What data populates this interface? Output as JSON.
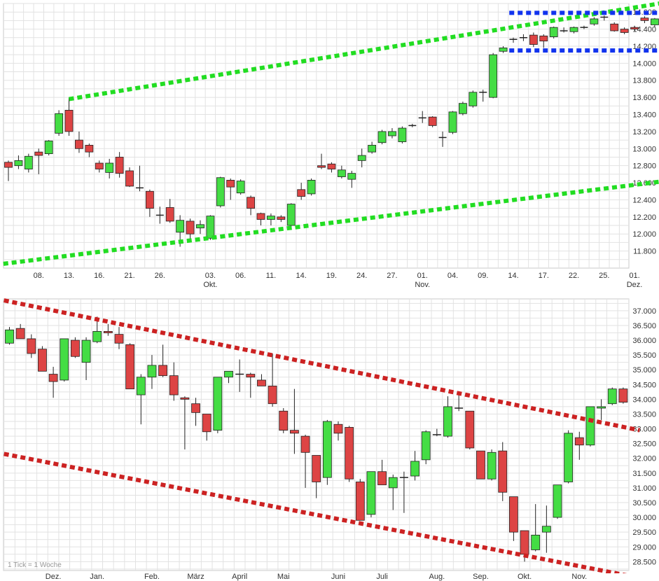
{
  "chart_data": [
    {
      "id": "daily",
      "type": "candlestick",
      "title": "",
      "ylim": [
        11.6,
        14.7
      ],
      "y_ticks": [
        "11.800",
        "12.000",
        "12.200",
        "12.400",
        "12.600",
        "12.800",
        "13.000",
        "13.200",
        "13.400",
        "13.600",
        "13.800",
        "14.000",
        "14.200",
        "14.400",
        "14.600"
      ],
      "x_ticks": [
        {
          "i": 3,
          "label": "08."
        },
        {
          "i": 6,
          "label": "13."
        },
        {
          "i": 9,
          "label": "16."
        },
        {
          "i": 12,
          "label": "21."
        },
        {
          "i": 15,
          "label": "26."
        },
        {
          "i": 20,
          "label": "03.",
          "sub": "Okt."
        },
        {
          "i": 23,
          "label": "06."
        },
        {
          "i": 26,
          "label": "11."
        },
        {
          "i": 29,
          "label": "14."
        },
        {
          "i": 32,
          "label": "19."
        },
        {
          "i": 35,
          "label": "24."
        },
        {
          "i": 38,
          "label": "27."
        },
        {
          "i": 41,
          "label": "01.",
          "sub": "Nov."
        },
        {
          "i": 44,
          "label": "04."
        },
        {
          "i": 47,
          "label": "09."
        },
        {
          "i": 50,
          "label": "14."
        },
        {
          "i": 53,
          "label": "17."
        },
        {
          "i": 56,
          "label": "22."
        },
        {
          "i": 59,
          "label": "25."
        },
        {
          "i": 62,
          "label": "01.",
          "sub": "Dez."
        }
      ],
      "candles": [
        {
          "o": 12.84,
          "h": 12.86,
          "l": 12.62,
          "c": 12.78
        },
        {
          "o": 12.8,
          "h": 12.92,
          "l": 12.76,
          "c": 12.86
        },
        {
          "o": 12.76,
          "h": 12.94,
          "l": 12.72,
          "c": 12.91
        },
        {
          "o": 12.96,
          "h": 13.0,
          "l": 12.7,
          "c": 12.92
        },
        {
          "o": 12.94,
          "h": 13.1,
          "l": 12.92,
          "c": 13.09
        },
        {
          "o": 13.18,
          "h": 13.45,
          "l": 13.15,
          "c": 13.41
        },
        {
          "o": 13.45,
          "h": 13.6,
          "l": 13.15,
          "c": 13.2
        },
        {
          "o": 13.1,
          "h": 13.2,
          "l": 12.95,
          "c": 13.0
        },
        {
          "o": 13.04,
          "h": 13.06,
          "l": 12.9,
          "c": 12.96
        },
        {
          "o": 12.83,
          "h": 12.86,
          "l": 12.72,
          "c": 12.76
        },
        {
          "o": 12.72,
          "h": 12.88,
          "l": 12.65,
          "c": 12.83
        },
        {
          "o": 12.9,
          "h": 12.96,
          "l": 12.66,
          "c": 12.71
        },
        {
          "o": 12.74,
          "h": 12.78,
          "l": 12.55,
          "c": 12.56
        },
        {
          "o": 12.54,
          "h": 12.8,
          "l": 12.5,
          "c": 12.54
        },
        {
          "o": 12.5,
          "h": 12.52,
          "l": 12.2,
          "c": 12.3
        },
        {
          "o": 12.22,
          "h": 12.32,
          "l": 12.12,
          "c": 12.22
        },
        {
          "o": 12.31,
          "h": 12.41,
          "l": 12.13,
          "c": 12.15
        },
        {
          "o": 12.02,
          "h": 12.22,
          "l": 11.85,
          "c": 12.16
        },
        {
          "o": 12.15,
          "h": 12.18,
          "l": 11.94,
          "c": 12.0
        },
        {
          "o": 12.07,
          "h": 12.16,
          "l": 12.0,
          "c": 12.11
        },
        {
          "o": 11.95,
          "h": 12.22,
          "l": 11.93,
          "c": 12.21
        },
        {
          "o": 12.33,
          "h": 12.67,
          "l": 12.31,
          "c": 12.66
        },
        {
          "o": 12.63,
          "h": 12.65,
          "l": 12.4,
          "c": 12.55
        },
        {
          "o": 12.48,
          "h": 12.64,
          "l": 12.46,
          "c": 12.62
        },
        {
          "o": 12.43,
          "h": 12.45,
          "l": 12.22,
          "c": 12.3
        },
        {
          "o": 12.24,
          "h": 12.25,
          "l": 12.1,
          "c": 12.17
        },
        {
          "o": 12.17,
          "h": 12.24,
          "l": 12.1,
          "c": 12.21
        },
        {
          "o": 12.2,
          "h": 12.22,
          "l": 12.14,
          "c": 12.17
        },
        {
          "o": 12.1,
          "h": 12.36,
          "l": 12.08,
          "c": 12.35
        },
        {
          "o": 12.52,
          "h": 12.6,
          "l": 12.4,
          "c": 12.44
        },
        {
          "o": 12.47,
          "h": 12.65,
          "l": 12.45,
          "c": 12.63
        },
        {
          "o": 12.8,
          "h": 12.94,
          "l": 12.76,
          "c": 12.78
        },
        {
          "o": 12.82,
          "h": 12.84,
          "l": 12.72,
          "c": 12.76
        },
        {
          "o": 12.67,
          "h": 12.8,
          "l": 12.65,
          "c": 12.75
        },
        {
          "o": 12.64,
          "h": 12.74,
          "l": 12.54,
          "c": 12.71
        },
        {
          "o": 12.86,
          "h": 13.0,
          "l": 12.78,
          "c": 12.92
        },
        {
          "o": 12.96,
          "h": 13.08,
          "l": 12.94,
          "c": 13.04
        },
        {
          "o": 13.07,
          "h": 13.22,
          "l": 13.05,
          "c": 13.2
        },
        {
          "o": 13.15,
          "h": 13.24,
          "l": 13.12,
          "c": 13.2
        },
        {
          "o": 13.08,
          "h": 13.26,
          "l": 13.06,
          "c": 13.24
        },
        {
          "o": 13.27,
          "h": 13.29,
          "l": 13.25,
          "c": 13.27
        },
        {
          "o": 13.36,
          "h": 13.44,
          "l": 13.3,
          "c": 13.36
        },
        {
          "o": 13.37,
          "h": 13.38,
          "l": 13.25,
          "c": 13.27
        },
        {
          "o": 13.13,
          "h": 13.2,
          "l": 13.02,
          "c": 13.13
        },
        {
          "o": 13.19,
          "h": 13.44,
          "l": 13.17,
          "c": 13.43
        },
        {
          "o": 13.41,
          "h": 13.55,
          "l": 13.39,
          "c": 13.53
        },
        {
          "o": 13.5,
          "h": 13.68,
          "l": 13.48,
          "c": 13.66
        },
        {
          "o": 13.66,
          "h": 13.69,
          "l": 13.55,
          "c": 13.66
        },
        {
          "o": 13.6,
          "h": 14.12,
          "l": 13.59,
          "c": 14.1
        },
        {
          "o": 14.14,
          "h": 14.2,
          "l": 14.12,
          "c": 14.18
        },
        {
          "o": 14.28,
          "h": 14.3,
          "l": 14.24,
          "c": 14.28
        },
        {
          "o": 14.3,
          "h": 14.34,
          "l": 14.26,
          "c": 14.3
        },
        {
          "o": 14.33,
          "h": 14.36,
          "l": 14.19,
          "c": 14.22
        },
        {
          "o": 14.32,
          "h": 14.34,
          "l": 14.18,
          "c": 14.26
        },
        {
          "o": 14.31,
          "h": 14.43,
          "l": 14.29,
          "c": 14.42
        },
        {
          "o": 14.38,
          "h": 14.42,
          "l": 14.36,
          "c": 14.38
        },
        {
          "o": 14.37,
          "h": 14.43,
          "l": 14.35,
          "c": 14.42
        },
        {
          "o": 14.42,
          "h": 14.44,
          "l": 14.4,
          "c": 14.42
        },
        {
          "o": 14.46,
          "h": 14.54,
          "l": 14.44,
          "c": 14.52
        },
        {
          "o": 14.54,
          "h": 14.56,
          "l": 14.5,
          "c": 14.54
        },
        {
          "o": 14.46,
          "h": 14.48,
          "l": 14.37,
          "c": 14.38
        },
        {
          "o": 14.4,
          "h": 14.42,
          "l": 14.34,
          "c": 14.36
        },
        {
          "o": 14.42,
          "h": 14.44,
          "l": 14.38,
          "c": 14.4
        },
        {
          "o": 14.53,
          "h": 14.55,
          "l": 14.47,
          "c": 14.5
        },
        {
          "o": 14.45,
          "h": 14.53,
          "l": 14.42,
          "c": 14.52
        }
      ],
      "lines": [
        {
          "name": "upper-trendline",
          "color": "#22dd22",
          "from": [
            6,
            13.58
          ],
          "to": [
            65,
            14.71
          ]
        },
        {
          "name": "lower-trendline",
          "color": "#22dd22",
          "from": [
            -0.5,
            11.65
          ],
          "to": [
            65,
            12.62
          ]
        },
        {
          "name": "range-top",
          "color": "#1133ee",
          "from": [
            49.6,
            14.59
          ],
          "to": [
            65,
            14.59
          ]
        },
        {
          "name": "range-bottom",
          "color": "#1133ee",
          "from": [
            49.6,
            14.15
          ],
          "to": [
            65,
            14.15
          ]
        }
      ]
    },
    {
      "id": "weekly",
      "type": "candlestick",
      "title": "",
      "ylim": [
        28.2,
        37.4
      ],
      "note": "1 Tick = 1 Woche",
      "y_ticks": [
        "28.500",
        "29.000",
        "29.500",
        "30.000",
        "30.500",
        "31.000",
        "31.500",
        "32.000",
        "32.500",
        "33.000",
        "33.500",
        "34.000",
        "34.500",
        "35.000",
        "35.500",
        "36.000",
        "36.500",
        "37.000"
      ],
      "x_ticks": [
        {
          "i": 4,
          "label": "Dez."
        },
        {
          "i": 8,
          "label": "Jan."
        },
        {
          "i": 13,
          "label": "Feb."
        },
        {
          "i": 17,
          "label": "März"
        },
        {
          "i": 21,
          "label": "April"
        },
        {
          "i": 25,
          "label": "Mai"
        },
        {
          "i": 30,
          "label": "Juni"
        },
        {
          "i": 34,
          "label": "Juli"
        },
        {
          "i": 39,
          "label": "Aug."
        },
        {
          "i": 43,
          "label": "Sep."
        },
        {
          "i": 47,
          "label": "Okt."
        },
        {
          "i": 52,
          "label": "Nov."
        }
      ],
      "candles": [
        {
          "o": 35.9,
          "h": 36.45,
          "l": 35.85,
          "c": 36.35
        },
        {
          "o": 36.4,
          "h": 36.55,
          "l": 36.05,
          "c": 36.05
        },
        {
          "o": 36.05,
          "h": 36.2,
          "l": 35.4,
          "c": 35.55
        },
        {
          "o": 35.7,
          "h": 35.8,
          "l": 34.95,
          "c": 34.95
        },
        {
          "o": 34.85,
          "h": 35.1,
          "l": 34.05,
          "c": 34.6
        },
        {
          "o": 34.65,
          "h": 36.05,
          "l": 34.6,
          "c": 36.05
        },
        {
          "o": 36.0,
          "h": 36.1,
          "l": 35.4,
          "c": 35.45
        },
        {
          "o": 35.25,
          "h": 36.1,
          "l": 34.65,
          "c": 36.0
        },
        {
          "o": 35.95,
          "h": 36.8,
          "l": 35.9,
          "c": 36.3
        },
        {
          "o": 36.3,
          "h": 36.55,
          "l": 36.15,
          "c": 36.25
        },
        {
          "o": 36.2,
          "h": 36.45,
          "l": 35.7,
          "c": 35.9
        },
        {
          "o": 35.85,
          "h": 35.9,
          "l": 34.35,
          "c": 34.35
        },
        {
          "o": 34.15,
          "h": 34.85,
          "l": 33.15,
          "c": 34.75
        },
        {
          "o": 34.75,
          "h": 35.5,
          "l": 34.35,
          "c": 35.15
        },
        {
          "o": 35.15,
          "h": 35.85,
          "l": 34.75,
          "c": 34.8
        },
        {
          "o": 34.8,
          "h": 35.25,
          "l": 33.95,
          "c": 34.15
        },
        {
          "o": 34.05,
          "h": 34.1,
          "l": 32.3,
          "c": 34.0
        },
        {
          "o": 33.85,
          "h": 34.05,
          "l": 33.1,
          "c": 33.55
        },
        {
          "o": 33.5,
          "h": 33.5,
          "l": 32.6,
          "c": 32.9
        },
        {
          "o": 32.95,
          "h": 34.7,
          "l": 32.85,
          "c": 34.75
        },
        {
          "o": 34.75,
          "h": 34.9,
          "l": 34.55,
          "c": 34.95
        },
        {
          "o": 34.85,
          "h": 35.35,
          "l": 34.25,
          "c": 34.85
        },
        {
          "o": 34.85,
          "h": 34.9,
          "l": 34.05,
          "c": 34.75
        },
        {
          "o": 34.65,
          "h": 34.85,
          "l": 34.45,
          "c": 34.45
        },
        {
          "o": 34.45,
          "h": 35.55,
          "l": 33.75,
          "c": 33.85
        },
        {
          "o": 33.6,
          "h": 33.7,
          "l": 32.85,
          "c": 32.95
        },
        {
          "o": 32.95,
          "h": 34.35,
          "l": 32.15,
          "c": 32.85
        },
        {
          "o": 32.75,
          "h": 32.8,
          "l": 31.0,
          "c": 32.2
        },
        {
          "o": 32.1,
          "h": 32.1,
          "l": 30.65,
          "c": 31.2
        },
        {
          "o": 31.35,
          "h": 33.3,
          "l": 31.1,
          "c": 33.25
        },
        {
          "o": 33.15,
          "h": 33.25,
          "l": 32.6,
          "c": 32.85
        },
        {
          "o": 33.05,
          "h": 33.1,
          "l": 31.2,
          "c": 31.3
        },
        {
          "o": 31.2,
          "h": 31.3,
          "l": 29.9,
          "c": 29.9
        },
        {
          "o": 30.1,
          "h": 31.55,
          "l": 30.0,
          "c": 31.55
        },
        {
          "o": 31.55,
          "h": 31.95,
          "l": 31.1,
          "c": 31.1
        },
        {
          "o": 31.0,
          "h": 31.45,
          "l": 30.25,
          "c": 31.35
        },
        {
          "o": 31.35,
          "h": 31.55,
          "l": 30.15,
          "c": 31.35
        },
        {
          "o": 31.4,
          "h": 32.25,
          "l": 31.25,
          "c": 31.9
        },
        {
          "o": 31.95,
          "h": 32.95,
          "l": 31.8,
          "c": 32.9
        },
        {
          "o": 32.8,
          "h": 33.0,
          "l": 32.75,
          "c": 32.8
        },
        {
          "o": 32.75,
          "h": 34.1,
          "l": 32.7,
          "c": 33.75
        },
        {
          "o": 33.7,
          "h": 34.2,
          "l": 33.6,
          "c": 33.7
        },
        {
          "o": 33.6,
          "h": 33.6,
          "l": 32.3,
          "c": 32.35
        },
        {
          "o": 32.25,
          "h": 32.25,
          "l": 31.3,
          "c": 31.3
        },
        {
          "o": 31.3,
          "h": 32.3,
          "l": 31.25,
          "c": 32.2
        },
        {
          "o": 32.25,
          "h": 32.55,
          "l": 30.55,
          "c": 30.85
        },
        {
          "o": 30.7,
          "h": 30.7,
          "l": 29.2,
          "c": 29.5
        },
        {
          "o": 29.55,
          "h": 29.55,
          "l": 28.5,
          "c": 28.75
        },
        {
          "o": 28.9,
          "h": 30.45,
          "l": 28.85,
          "c": 29.4
        },
        {
          "o": 29.5,
          "h": 30.4,
          "l": 28.8,
          "c": 29.7
        },
        {
          "o": 30.0,
          "h": 31.1,
          "l": 29.95,
          "c": 31.1
        },
        {
          "o": 31.2,
          "h": 32.95,
          "l": 31.15,
          "c": 32.85
        },
        {
          "o": 32.7,
          "h": 32.9,
          "l": 31.95,
          "c": 32.45
        },
        {
          "o": 32.45,
          "h": 33.75,
          "l": 32.4,
          "c": 33.75
        },
        {
          "o": 33.7,
          "h": 34.0,
          "l": 33.3,
          "c": 33.75
        },
        {
          "o": 33.85,
          "h": 34.4,
          "l": 33.8,
          "c": 34.35
        },
        {
          "o": 34.35,
          "h": 34.4,
          "l": 33.85,
          "c": 33.9
        }
      ],
      "lines": [
        {
          "name": "upper-channel-line",
          "color": "#cc2222",
          "from": [
            -0.5,
            37.35
          ],
          "to": [
            57.5,
            32.95
          ]
        },
        {
          "name": "lower-channel-line",
          "color": "#cc2222",
          "from": [
            -0.5,
            32.15
          ],
          "to": [
            57.5,
            27.95
          ]
        }
      ]
    }
  ]
}
